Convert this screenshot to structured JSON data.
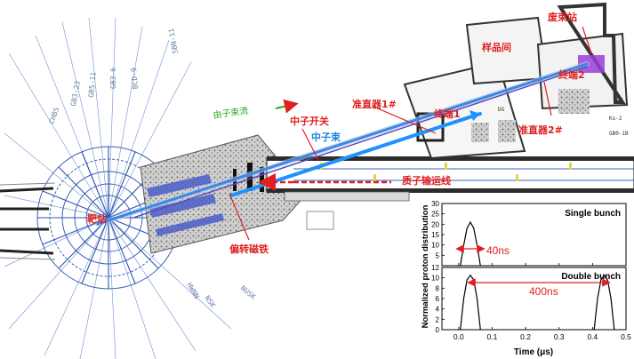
{
  "labels": {
    "neutron_wall": "由子束流",
    "neutron_switch": "中子开关",
    "neutron_beam": "中子束",
    "target_station": "靶站",
    "bending_magnet": "偏转磁铁",
    "proton_beam_line": "质子输运线",
    "collimator1": "准直器1#",
    "collimator2": "准直器2#",
    "terminal1": "终端1",
    "terminal2": "终端2",
    "sample_room": "样品间",
    "beam_dump": "废束站"
  },
  "chart_data": [
    {
      "type": "line",
      "title": "Single bunch",
      "xlim": [
        -0.05,
        0.5
      ],
      "ylim": [
        0,
        30
      ],
      "yticks": [
        "30",
        "25",
        "20",
        "15",
        "10",
        "5"
      ],
      "series": [
        {
          "values": [
            [
              0.005,
              0
            ],
            [
              0.015,
              10
            ],
            [
              0.025,
              18
            ],
            [
              0.035,
              21
            ],
            [
              0.045,
              18
            ],
            [
              0.055,
              10
            ],
            [
              0.065,
              0
            ]
          ]
        }
      ],
      "annotations": [
        {
          "text": "40ns",
          "x": 0.035,
          "y": 12
        }
      ]
    },
    {
      "type": "line",
      "title": "Double bunch",
      "xlabel": "Time (μs)",
      "ylabel": "Normalized proton distribution",
      "xlim": [
        -0.05,
        0.5
      ],
      "ylim": [
        0,
        12
      ],
      "xticks": [
        "0.0",
        "0.1",
        "0.2",
        "0.3",
        "0.4",
        "0.5"
      ],
      "yticks": [
        "12",
        "10",
        "8",
        "6",
        "4",
        "2",
        "0"
      ],
      "series": [
        {
          "values": [
            [
              0.005,
              0
            ],
            [
              0.015,
              6
            ],
            [
              0.025,
              9.6
            ],
            [
              0.035,
              10.5
            ],
            [
              0.045,
              9.6
            ],
            [
              0.055,
              6
            ],
            [
              0.065,
              0
            ]
          ]
        },
        {
          "values": [
            [
              0.405,
              0
            ],
            [
              0.415,
              6
            ],
            [
              0.425,
              9.6
            ],
            [
              0.435,
              10.5
            ],
            [
              0.445,
              9.6
            ],
            [
              0.455,
              6
            ],
            [
              0.465,
              0
            ]
          ]
        }
      ],
      "annotations": [
        {
          "text": "400ns",
          "x": 0.2,
          "y": 8
        }
      ]
    }
  ]
}
